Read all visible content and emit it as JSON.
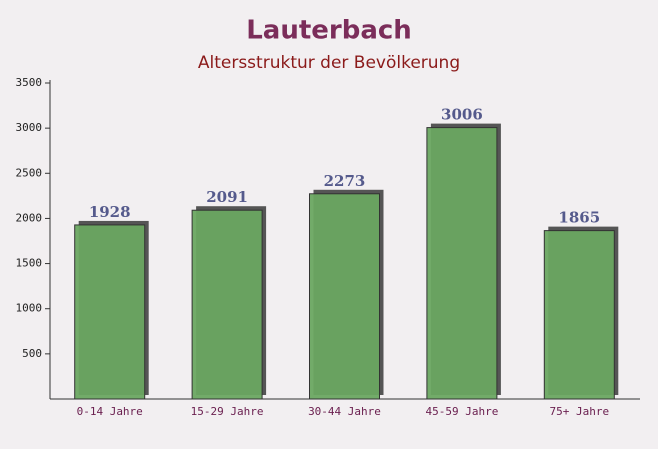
{
  "chart_data": {
    "type": "bar",
    "title": "Lauterbach",
    "subtitle": "Altersstruktur der Bevölkerung",
    "categories": [
      "0-14 Jahre",
      "15-29 Jahre",
      "30-44 Jahre",
      "45-59 Jahre",
      "75+ Jahre"
    ],
    "values": [
      1928,
      2091,
      2273,
      3006,
      1865
    ],
    "color": "#6aa661",
    "ylim": [
      0,
      3500
    ],
    "yticks": [
      500,
      1000,
      1500,
      2000,
      2500,
      3000,
      3500
    ],
    "grid": false
  }
}
